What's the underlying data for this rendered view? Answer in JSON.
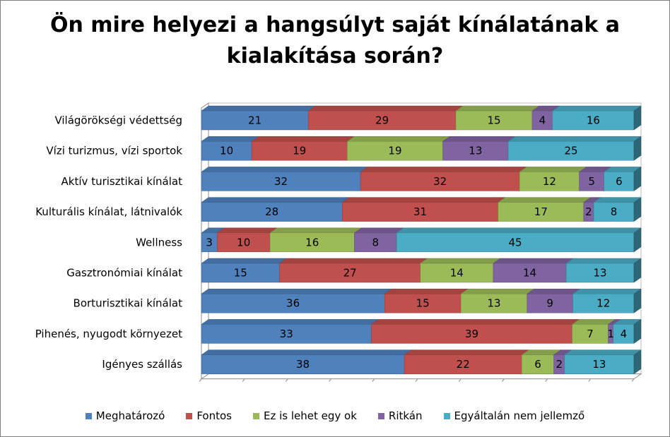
{
  "chart_data": {
    "type": "bar",
    "orientation": "horizontal",
    "stacked": true,
    "title": "Ön mire helyezi a hangsúlyt saját kínálatának a kialakítása során?",
    "categories": [
      "Világörökségi védettség",
      "Vízi turizmus, vízi sportok",
      "Aktív turisztikai kínálat",
      "Kulturális kínálat, látnivalók",
      "Wellness",
      "Gasztronómiai kínálat",
      "Borturisztikai kínálat",
      "Pihenés, nyugodt környezet",
      "Igényes szállás"
    ],
    "series": [
      {
        "name": "Meghatározó",
        "color": "#4f81bd",
        "values": [
          21,
          10,
          32,
          28,
          3,
          15,
          36,
          33,
          38
        ]
      },
      {
        "name": "Fontos",
        "color": "#c0504d",
        "values": [
          29,
          19,
          32,
          31,
          10,
          27,
          15,
          39,
          22
        ]
      },
      {
        "name": "Ez is lehet egy ok",
        "color": "#9bbb59",
        "values": [
          15,
          19,
          12,
          17,
          16,
          14,
          13,
          7,
          6
        ]
      },
      {
        "name": "Ritkán",
        "color": "#8064a2",
        "values": [
          4,
          13,
          5,
          2,
          8,
          14,
          9,
          1,
          2
        ]
      },
      {
        "name": "Egyáltalán nem jellemző",
        "color": "#4bacc6",
        "values": [
          16,
          25,
          6,
          8,
          45,
          13,
          12,
          4,
          13
        ]
      }
    ],
    "legend_position": "bottom",
    "grid": false,
    "normalized_to_100_percent": true
  }
}
